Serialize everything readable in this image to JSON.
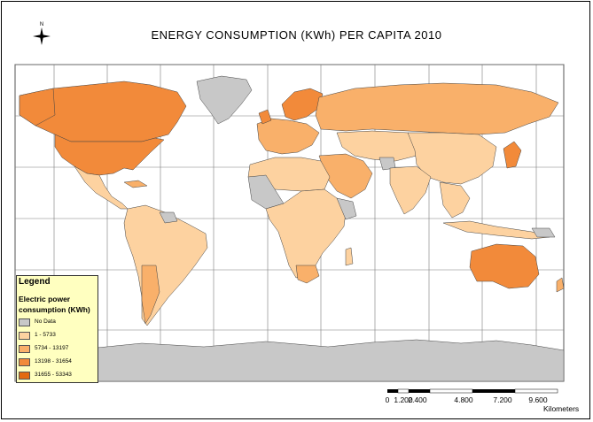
{
  "title": "ENERGY CONSUMPTION (KWh) PER CAPITA 2010",
  "legend": {
    "heading": "Legend",
    "subtitle": "Electric power consumption (KWh)",
    "classes": [
      {
        "label": "No Data",
        "color": "#c8c8c8"
      },
      {
        "label": "1 - 5733",
        "color": "#fdd2a0"
      },
      {
        "label": "5734 - 13197",
        "color": "#f9b06a"
      },
      {
        "label": "13198 - 31654",
        "color": "#f28a3a"
      },
      {
        "label": "31655 - 53343",
        "color": "#e36a10"
      }
    ]
  },
  "scale_bar": {
    "ticks": [
      "0",
      "1.200",
      "2.400",
      "4.800",
      "7.200",
      "9.600"
    ],
    "unit": "Kilometers"
  },
  "colors": {
    "ocean": "#ffffff",
    "graticule": "#7a7a7a",
    "frame": "#000000"
  },
  "north_arrow": "compass-north-arrow"
}
